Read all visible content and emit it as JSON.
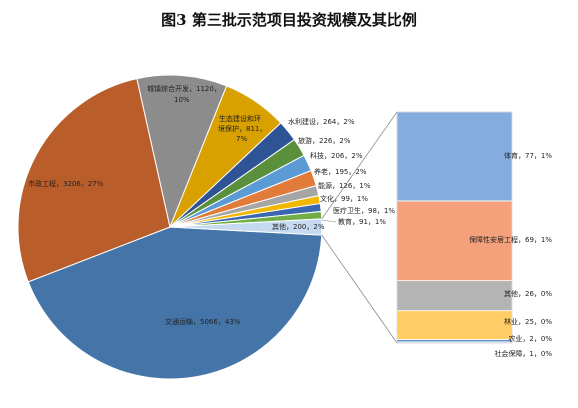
{
  "chart_data": {
    "type": "bar-of-pie",
    "title": "图3 第三批示范项目投资规模及其比例",
    "pie": {
      "slices": [
        {
          "name": "交通运输",
          "value": 5066,
          "pct": "43%",
          "label": "交通运输，5066，43%",
          "color": "#4575a8"
        },
        {
          "name": "市政工程",
          "value": 3206,
          "pct": "27%",
          "label": "市政工程，3206，27%",
          "color": "#b95d2a"
        },
        {
          "name": "城镇综合开发",
          "value": 1120,
          "pct": "10%",
          "label": "城镇综合开发，1120，10%",
          "color": "#8c8c8c"
        },
        {
          "name": "生态建设和环境保护",
          "value": 811,
          "pct": "7%",
          "label": "生态建设和环境保护，811，7%",
          "color": "#d9a100"
        },
        {
          "name": "水利建设",
          "value": 264,
          "pct": "2%",
          "label": "水利建设，264，2%",
          "color": "#2e5496"
        },
        {
          "name": "旅游",
          "value": 226,
          "pct": "2%",
          "label": "旅游，226，2%",
          "color": "#5a8f3c"
        },
        {
          "name": "科技",
          "value": 206,
          "pct": "2%",
          "label": "科技，206，2%",
          "color": "#5b9bd5"
        },
        {
          "name": "养老",
          "value": 195,
          "pct": "2%",
          "label": "养老，195，2%",
          "color": "#e07b39"
        },
        {
          "name": "能源",
          "value": 126,
          "pct": "1%",
          "label": "能源，126，1%",
          "color": "#a5a5a5"
        },
        {
          "name": "文化",
          "value": 99,
          "pct": "1%",
          "label": "文化，99，1%",
          "color": "#f2b800"
        },
        {
          "name": "医疗卫生",
          "value": 98,
          "pct": "1%",
          "label": "医疗卫生，98，1%",
          "color": "#3a66b0"
        },
        {
          "name": "教育",
          "value": 91,
          "pct": "1%",
          "label": "教育，91，1%",
          "color": "#70ad47"
        },
        {
          "name": "其他",
          "value": 200,
          "pct": "2%",
          "label": "其他，200，2%",
          "color": "#c5d9f0"
        }
      ]
    },
    "bar": {
      "segments": [
        {
          "name": "社会保障",
          "value": 1,
          "pct": "0%",
          "label": "社会保障，1，0%",
          "color": "#7f9fc6"
        },
        {
          "name": "农业",
          "value": 2,
          "pct": "0%",
          "label": "农业，2，0%",
          "color": "#5b8fc9"
        },
        {
          "name": "林业",
          "value": 25,
          "pct": "0%",
          "label": "林业，25，0%",
          "color": "#ffcc66"
        },
        {
          "name": "其他",
          "value": 26,
          "pct": "0%",
          "label": "其他，26，0%",
          "color": "#b4b4b4"
        },
        {
          "name": "保障性安居工程",
          "value": 69,
          "pct": "1%",
          "label": "保障性安居工程，69，1%",
          "color": "#f4a07a"
        },
        {
          "name": "体育",
          "value": 77,
          "pct": "1%",
          "label": "体育，77，1%",
          "color": "#84acdc"
        }
      ]
    }
  }
}
